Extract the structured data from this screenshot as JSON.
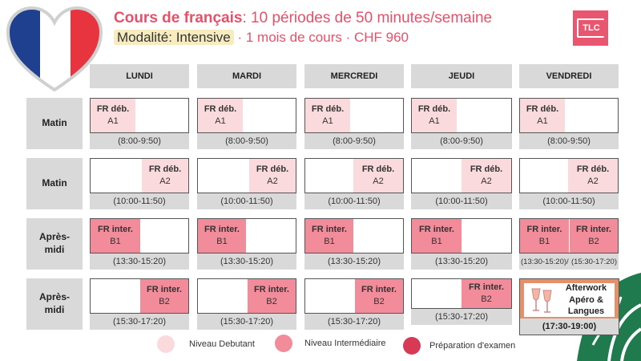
{
  "header": {
    "title_bold": "Cours de français",
    "title_rest": ": 10 périodes de 50 minutes/semaine",
    "modality": "Modalité: Intensive",
    "details": " · 1 mois de cours · CHF 960",
    "logo": "TLC"
  },
  "days": [
    "LUNDI",
    "MARDI",
    "MERCREDI",
    "JEUDI",
    "VENDREDI"
  ],
  "rows": [
    {
      "label": "Matin",
      "time": "(8:00-9:50)"
    },
    {
      "label": "Matin",
      "time": "(10:00-11:50)"
    },
    {
      "label": "Après-midi",
      "time": "(13:30-15:20)"
    },
    {
      "label": "Après-midi",
      "time": "(15:30-17:20)"
    }
  ],
  "courses": {
    "deb_a1": {
      "name": "FR déb.",
      "level": "A1"
    },
    "deb_a2": {
      "name": "FR déb.",
      "level": "A2"
    },
    "inter_b1": {
      "name": "FR inter.",
      "level": "B1"
    },
    "inter_b2": {
      "name": "FR inter.",
      "level": "B2"
    }
  },
  "friday_afternoon": {
    "time_b1": "(13:30-15:20)/",
    "time_b2": "(15:30-17:20)"
  },
  "afterwork": {
    "line1": "Afterwork",
    "line2": "Apéro &",
    "line3": "Langues",
    "time": "(17:30-19:00)"
  },
  "legend": [
    {
      "label": "Niveau Debutant",
      "color": "#fadadd"
    },
    {
      "label": "Niveau Intermédiaire",
      "color": "#f28c9b"
    },
    {
      "label": "Préparation d'examen",
      "color": "#d83a56"
    }
  ],
  "colors": {
    "accent": "#e8506a",
    "debutant": "#fadadd",
    "intermediaire": "#f28c9b",
    "examen": "#d83a56",
    "header_bg": "#d9d9d9"
  }
}
